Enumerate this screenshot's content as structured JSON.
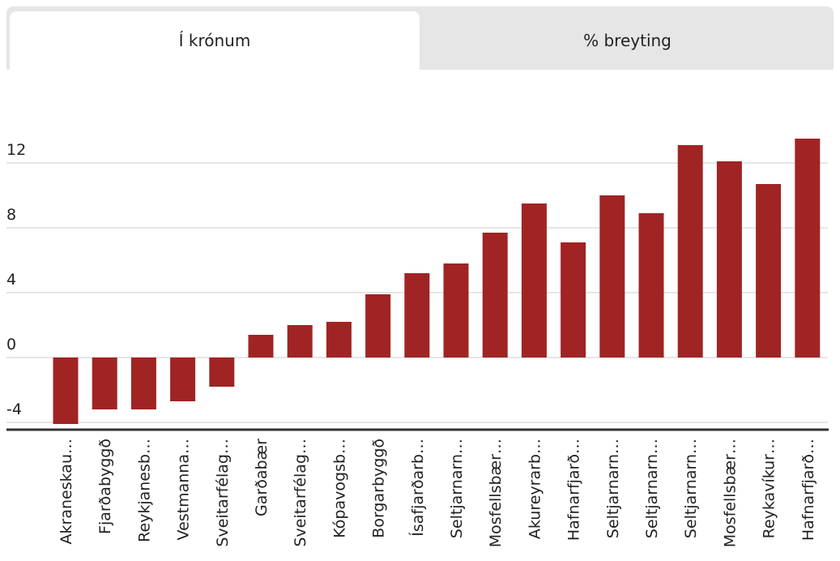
{
  "tabs": {
    "krona_label": "Í krónum",
    "percent_label": "% breyting",
    "active": "krona"
  },
  "colors": {
    "bar": "#a02424",
    "grid": "#cccccc",
    "baseline": "#333333"
  },
  "chart_data": {
    "type": "bar",
    "categories": [
      "Akraneskau…",
      "Fjarðabyggð",
      "Reykjanesb…",
      "Vestmanna…",
      "Sveitarfélag…",
      "Garðabær",
      "Sveitarfélag…",
      "Kópavogsb…",
      "Borgarbyggð",
      "Ísafjarðarb…",
      "Seltjarnarn…",
      "Mosfellsbær…",
      "Akureyrarb…",
      "Hafnarfjarð…",
      "Seltjarnarn…",
      "Seltjarnarn…",
      "Seltjarnarn…",
      "Mosfellsbær…",
      "Reykavíkur…",
      "Hafnarfjarð…"
    ],
    "values": [
      -4.1,
      -3.2,
      -3.2,
      -2.7,
      -1.8,
      1.4,
      2.0,
      2.2,
      3.9,
      5.2,
      5.8,
      7.7,
      9.5,
      7.1,
      10.0,
      8.9,
      13.1,
      12.1,
      10.7,
      13.5
    ],
    "yticks": [
      -4,
      0,
      4,
      8,
      12
    ],
    "ylim": [
      -4.1,
      14
    ],
    "grid": true
  }
}
